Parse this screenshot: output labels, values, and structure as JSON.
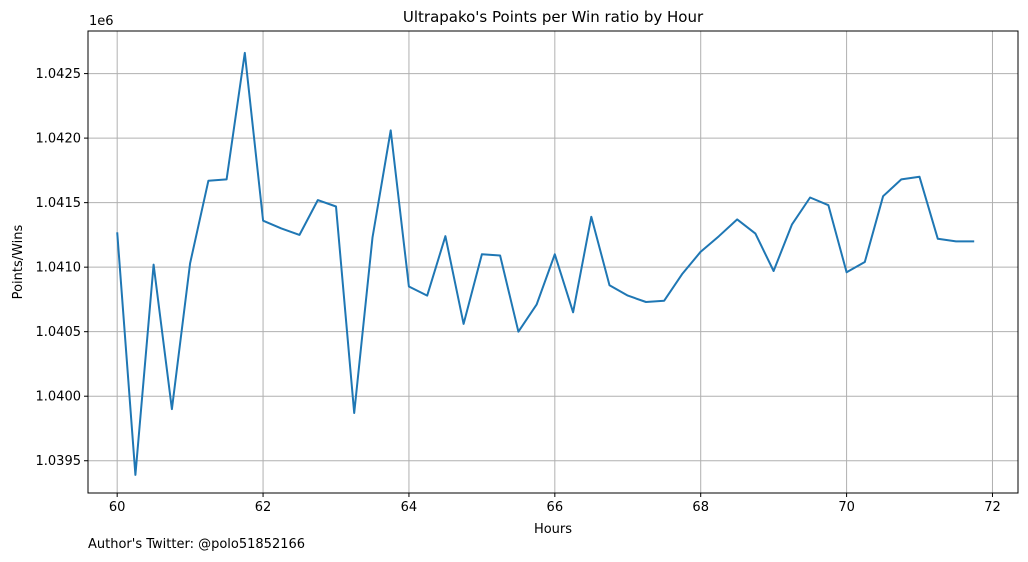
{
  "chart_data": {
    "type": "line",
    "title": "Ultrapako's Points per Win ratio by Hour",
    "xlabel": "Hours",
    "ylabel": "Points/Wins",
    "y_offset_label": "1e6",
    "xlim": [
      59.6,
      72.35
    ],
    "ylim": [
      1.03925,
      1.04283
    ],
    "x_ticks": [
      60,
      62,
      64,
      66,
      68,
      70,
      72
    ],
    "x_tick_labels": [
      "60",
      "62",
      "64",
      "66",
      "68",
      "70",
      "72"
    ],
    "y_ticks": [
      1.0395,
      1.04,
      1.0405,
      1.041,
      1.0415,
      1.042,
      1.0425
    ],
    "y_tick_labels": [
      "1.0395",
      "1.0400",
      "1.0405",
      "1.0410",
      "1.0415",
      "1.0420",
      "1.0425"
    ],
    "grid": true,
    "line_color": "#1f77b4",
    "series": [
      {
        "x": [
          60.0,
          60.25,
          60.5,
          60.75,
          61.0,
          61.25,
          61.5,
          61.75,
          62.0,
          62.25,
          62.5,
          62.75,
          63.0,
          63.25,
          63.5,
          63.75,
          64.0,
          64.25,
          64.5,
          64.75,
          65.0,
          65.25,
          65.5,
          65.75,
          66.0,
          66.25,
          66.5,
          66.75,
          67.0,
          67.25,
          67.5,
          67.75,
          68.0,
          68.25,
          68.5,
          68.75,
          69.0,
          69.25,
          69.5,
          69.75,
          70.0,
          70.25,
          70.5,
          70.75,
          71.0,
          71.25,
          71.5,
          71.75
        ],
        "y": [
          1.04127,
          1.03939,
          1.04102,
          1.0399,
          1.04103,
          1.04167,
          1.04168,
          1.04266,
          1.04136,
          1.0413,
          1.04125,
          1.04152,
          1.04147,
          1.03987,
          1.04123,
          1.04206,
          1.04085,
          1.04078,
          1.04124,
          1.04056,
          1.0411,
          1.04109,
          1.0405,
          1.04071,
          1.0411,
          1.04065,
          1.04139,
          1.04086,
          1.04078,
          1.04073,
          1.04074,
          1.04095,
          1.04112,
          1.04124,
          1.04137,
          1.04126,
          1.04097,
          1.04133,
          1.04154,
          1.04148,
          1.04096,
          1.04104,
          1.04155,
          1.04168,
          1.0417,
          1.04122,
          1.0412,
          1.0412
        ]
      }
    ]
  },
  "footer": "Author's Twitter: @polo51852166"
}
